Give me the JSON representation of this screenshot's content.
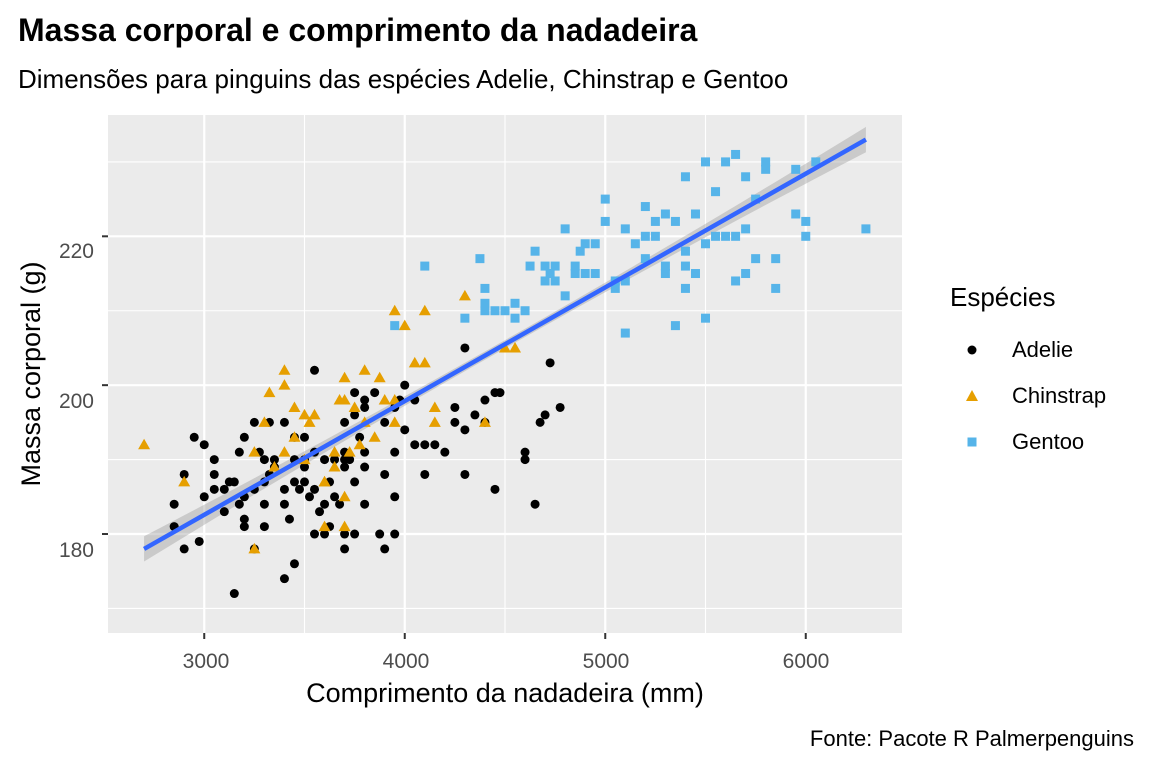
{
  "title": "Massa corporal e comprimento da nadadeira",
  "subtitle": "Dimensões para pinguins das espécies Adelie, Chinstrap e Gentoo",
  "caption": "Fonte: Pacote R Palmerpenguins",
  "legend": {
    "title": "Espécies",
    "items": [
      {
        "label": "Adelie",
        "color": "#000000",
        "shape": "circle"
      },
      {
        "label": "Chinstrap",
        "color": "#E69F00",
        "shape": "triangle"
      },
      {
        "label": "Gentoo",
        "color": "#56B4E9",
        "shape": "square"
      }
    ]
  },
  "chart_data": {
    "type": "scatter",
    "title": "Massa corporal e comprimento da nadadeira",
    "subtitle": "Dimensões para pinguins das espécies Adelie, Chinstrap e Gentoo",
    "xlabel": "Comprimento da nadadeira (mm)",
    "ylabel": "Massa corporal (g)",
    "xlim": [
      2520,
      6480
    ],
    "ylim": [
      166.7,
      236.3
    ],
    "xticks": [
      3000,
      4000,
      5000,
      6000
    ],
    "yticks": [
      180,
      200,
      220
    ],
    "grid": true,
    "legend_position": "right",
    "background": "#EBEBEB",
    "trend": {
      "type": "linear",
      "x": [
        2700,
        6300
      ],
      "y": [
        178,
        233
      ],
      "color": "#3366FF",
      "band_color": "#999999"
    },
    "series": [
      {
        "name": "Adelie",
        "color": "#000000",
        "shape": "circle",
        "points": [
          [
            2850,
            181
          ],
          [
            2850,
            184
          ],
          [
            2900,
            178
          ],
          [
            2900,
            188
          ],
          [
            2950,
            193
          ],
          [
            2975,
            179
          ],
          [
            3000,
            192
          ],
          [
            3000,
            185
          ],
          [
            3050,
            190
          ],
          [
            3050,
            188
          ],
          [
            3050,
            186
          ],
          [
            3100,
            186
          ],
          [
            3100,
            183
          ],
          [
            3125,
            187
          ],
          [
            3150,
            172
          ],
          [
            3150,
            187
          ],
          [
            3175,
            184
          ],
          [
            3175,
            191
          ],
          [
            3200,
            182
          ],
          [
            3200,
            181
          ],
          [
            3200,
            193
          ],
          [
            3200,
            185
          ],
          [
            3250,
            195
          ],
          [
            3250,
            178
          ],
          [
            3250,
            186
          ],
          [
            3275,
            191
          ],
          [
            3300,
            181
          ],
          [
            3300,
            184
          ],
          [
            3300,
            187
          ],
          [
            3300,
            190
          ],
          [
            3325,
            195
          ],
          [
            3325,
            188
          ],
          [
            3350,
            190
          ],
          [
            3350,
            189
          ],
          [
            3400,
            186
          ],
          [
            3400,
            184
          ],
          [
            3400,
            174
          ],
          [
            3400,
            195
          ],
          [
            3425,
            182
          ],
          [
            3450,
            176
          ],
          [
            3450,
            187
          ],
          [
            3450,
            193
          ],
          [
            3450,
            190
          ],
          [
            3475,
            186
          ],
          [
            3500,
            193
          ],
          [
            3500,
            187
          ],
          [
            3500,
            190
          ],
          [
            3500,
            189
          ],
          [
            3525,
            185
          ],
          [
            3550,
            202
          ],
          [
            3550,
            186
          ],
          [
            3550,
            191
          ],
          [
            3550,
            180
          ],
          [
            3575,
            183
          ],
          [
            3600,
            184
          ],
          [
            3600,
            180
          ],
          [
            3600,
            190
          ],
          [
            3625,
            181
          ],
          [
            3625,
            187
          ],
          [
            3650,
            190
          ],
          [
            3650,
            185
          ],
          [
            3675,
            184
          ],
          [
            3700,
            180
          ],
          [
            3700,
            189
          ],
          [
            3700,
            191
          ],
          [
            3700,
            178
          ],
          [
            3700,
            195
          ],
          [
            3700,
            190
          ],
          [
            3725,
            190
          ],
          [
            3750,
            196
          ],
          [
            3750,
            199
          ],
          [
            3750,
            187
          ],
          [
            3750,
            180
          ],
          [
            3775,
            193
          ],
          [
            3800,
            184
          ],
          [
            3800,
            189
          ],
          [
            3800,
            191
          ],
          [
            3800,
            197
          ],
          [
            3800,
            198
          ],
          [
            3850,
            199
          ],
          [
            3875,
            180
          ],
          [
            3900,
            188
          ],
          [
            3900,
            195
          ],
          [
            3900,
            178
          ],
          [
            3950,
            185
          ],
          [
            3950,
            180
          ],
          [
            3950,
            191
          ],
          [
            3950,
            197
          ],
          [
            3975,
            198
          ],
          [
            4000,
            200
          ],
          [
            4000,
            194
          ],
          [
            4050,
            192
          ],
          [
            4050,
            198
          ],
          [
            4100,
            188
          ],
          [
            4100,
            192
          ],
          [
            4150,
            192
          ],
          [
            4200,
            191
          ],
          [
            4250,
            195
          ],
          [
            4250,
            197
          ],
          [
            4300,
            205
          ],
          [
            4300,
            194
          ],
          [
            4300,
            188
          ],
          [
            4350,
            196
          ],
          [
            4400,
            195
          ],
          [
            4400,
            198
          ],
          [
            4450,
            186
          ],
          [
            4450,
            199
          ],
          [
            4475,
            199
          ],
          [
            4600,
            191
          ],
          [
            4600,
            190
          ],
          [
            4650,
            184
          ],
          [
            4675,
            195
          ],
          [
            4700,
            196
          ],
          [
            4725,
            203
          ],
          [
            4775,
            197
          ]
        ]
      },
      {
        "name": "Chinstrap",
        "color": "#E69F00",
        "shape": "triangle",
        "points": [
          [
            2700,
            192
          ],
          [
            2900,
            187
          ],
          [
            3250,
            178
          ],
          [
            3250,
            191
          ],
          [
            3300,
            195
          ],
          [
            3325,
            199
          ],
          [
            3350,
            189
          ],
          [
            3400,
            202
          ],
          [
            3400,
            200
          ],
          [
            3400,
            191
          ],
          [
            3450,
            197
          ],
          [
            3450,
            193
          ],
          [
            3500,
            190
          ],
          [
            3500,
            196
          ],
          [
            3525,
            195
          ],
          [
            3550,
            196
          ],
          [
            3600,
            187
          ],
          [
            3600,
            181
          ],
          [
            3600,
            187
          ],
          [
            3650,
            191
          ],
          [
            3650,
            189
          ],
          [
            3675,
            198
          ],
          [
            3700,
            201
          ],
          [
            3700,
            181
          ],
          [
            3700,
            185
          ],
          [
            3700,
            198
          ],
          [
            3725,
            191
          ],
          [
            3750,
            197
          ],
          [
            3775,
            192
          ],
          [
            3800,
            195
          ],
          [
            3800,
            202
          ],
          [
            3850,
            193
          ],
          [
            3875,
            201
          ],
          [
            3900,
            198
          ],
          [
            3950,
            195
          ],
          [
            3950,
            210
          ],
          [
            3950,
            198
          ],
          [
            4000,
            208
          ],
          [
            4050,
            203
          ],
          [
            4100,
            203
          ],
          [
            4100,
            210
          ],
          [
            4150,
            197
          ],
          [
            4150,
            195
          ],
          [
            4300,
            212
          ],
          [
            4400,
            195
          ],
          [
            4500,
            205
          ],
          [
            4550,
            205
          ]
        ]
      },
      {
        "name": "Gentoo",
        "color": "#56B4E9",
        "shape": "square",
        "points": [
          [
            3950,
            208
          ],
          [
            4100,
            216
          ],
          [
            4300,
            209
          ],
          [
            4375,
            217
          ],
          [
            4400,
            213
          ],
          [
            4400,
            210
          ],
          [
            4400,
            211
          ],
          [
            4450,
            210
          ],
          [
            4500,
            210
          ],
          [
            4550,
            211
          ],
          [
            4550,
            209
          ],
          [
            4600,
            210
          ],
          [
            4625,
            216
          ],
          [
            4650,
            218
          ],
          [
            4700,
            214
          ],
          [
            4700,
            216
          ],
          [
            4725,
            215
          ],
          [
            4750,
            216
          ],
          [
            4750,
            214
          ],
          [
            4800,
            212
          ],
          [
            4800,
            221
          ],
          [
            4850,
            215
          ],
          [
            4850,
            216
          ],
          [
            4875,
            218
          ],
          [
            4900,
            219
          ],
          [
            4900,
            215
          ],
          [
            4950,
            215
          ],
          [
            4950,
            219
          ],
          [
            5000,
            222
          ],
          [
            5000,
            225
          ],
          [
            5050,
            214
          ],
          [
            5050,
            213
          ],
          [
            5100,
            207
          ],
          [
            5100,
            214
          ],
          [
            5100,
            221
          ],
          [
            5150,
            219
          ],
          [
            5200,
            217
          ],
          [
            5200,
            220
          ],
          [
            5200,
            224
          ],
          [
            5250,
            220
          ],
          [
            5250,
            222
          ],
          [
            5300,
            223
          ],
          [
            5300,
            215
          ],
          [
            5300,
            216
          ],
          [
            5350,
            208
          ],
          [
            5350,
            222
          ],
          [
            5400,
            216
          ],
          [
            5400,
            213
          ],
          [
            5400,
            218
          ],
          [
            5400,
            228
          ],
          [
            5450,
            223
          ],
          [
            5450,
            215
          ],
          [
            5500,
            209
          ],
          [
            5500,
            219
          ],
          [
            5500,
            230
          ],
          [
            5550,
            220
          ],
          [
            5550,
            226
          ],
          [
            5600,
            220
          ],
          [
            5600,
            230
          ],
          [
            5650,
            231
          ],
          [
            5650,
            214
          ],
          [
            5650,
            220
          ],
          [
            5700,
            215
          ],
          [
            5700,
            221
          ],
          [
            5700,
            228
          ],
          [
            5750,
            217
          ],
          [
            5750,
            225
          ],
          [
            5800,
            229
          ],
          [
            5800,
            230
          ],
          [
            5850,
            217
          ],
          [
            5850,
            213
          ],
          [
            5950,
            229
          ],
          [
            5950,
            223
          ],
          [
            6000,
            222
          ],
          [
            6000,
            220
          ],
          [
            6050,
            230
          ],
          [
            6300,
            221
          ]
        ]
      }
    ]
  },
  "axes": {
    "xlabel": "Comprimento da nadadeira (mm)",
    "ylabel": "Massa corporal (g)",
    "xtick_labels": [
      "3000",
      "4000",
      "5000",
      "6000"
    ],
    "ytick_labels": [
      "180",
      "200",
      "220"
    ]
  }
}
